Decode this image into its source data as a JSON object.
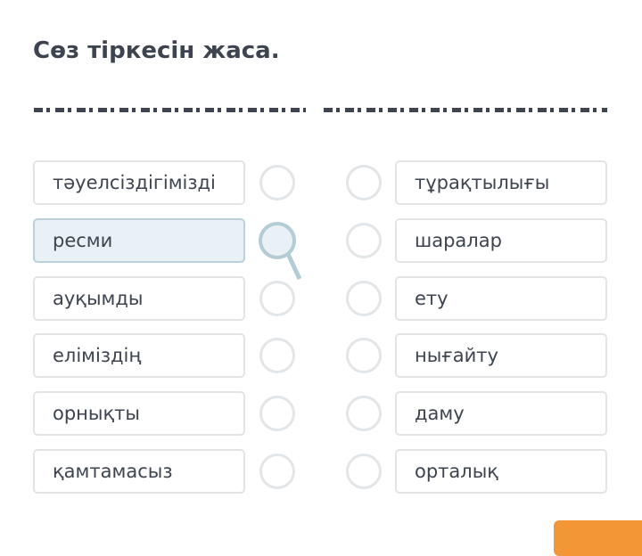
{
  "title": "Сөз тіркесін жаса.",
  "left": [
    "тәуелсіздігімізді",
    "ресми",
    "ауқымды",
    "еліміздің",
    "орнықты",
    "қамтамасыз"
  ],
  "right": [
    "тұрақтылығы",
    "шаралар",
    "ету",
    "нығайту",
    "даму",
    "орталық"
  ],
  "selected_left": 1,
  "colors": {
    "accent": "#f29636",
    "text": "#3d4450",
    "selected_bg": "#eaf1f6"
  }
}
